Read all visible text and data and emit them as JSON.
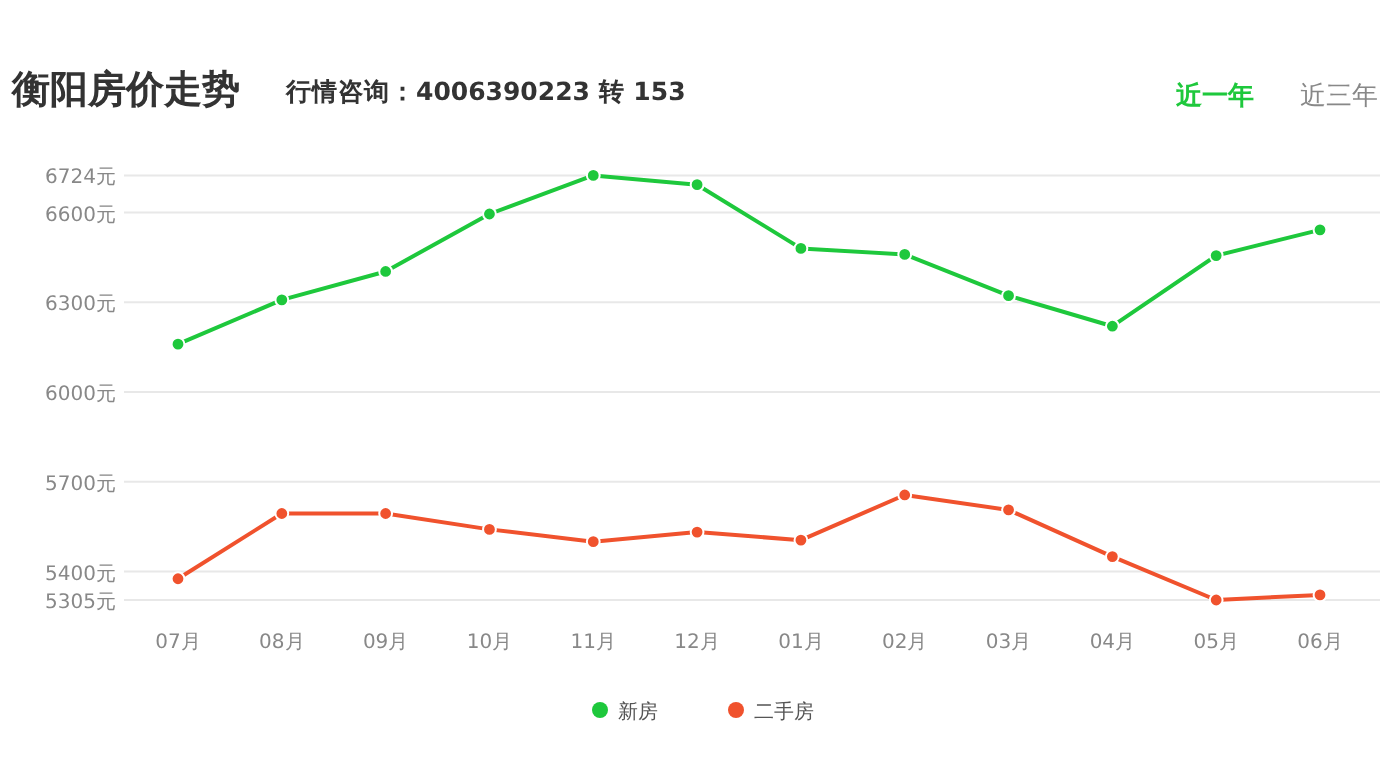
{
  "chart_data": {
    "type": "line",
    "title": "衡阳房价走势",
    "subtitle": "行情咨询：4006390223 转 153",
    "annotations": [
      "近一年",
      "近三年"
    ],
    "categories": [
      "07月",
      "08月",
      "09月",
      "10月",
      "11月",
      "12月",
      "01月",
      "02月",
      "03月",
      "04月",
      "05月",
      "06月"
    ],
    "series": [
      {
        "name": "新房",
        "color": "#1ec83c",
        "values": [
          6160,
          6308,
          6403,
          6595,
          6724,
          6693,
          6480,
          6460,
          6322,
          6220,
          6456,
          6542
        ]
      },
      {
        "name": "二手房",
        "color": "#f0522d",
        "values": [
          5376,
          5594,
          5594,
          5541,
          5500,
          5532,
          5505,
          5656,
          5606,
          5450,
          5305,
          5322
        ]
      }
    ],
    "ylim": [
      5305,
      6724
    ],
    "yticks": [
      {
        "value": 5305,
        "label": "5305元"
      },
      {
        "value": 5400,
        "label": "5400元"
      },
      {
        "value": 5700,
        "label": "5700元"
      },
      {
        "value": 6000,
        "label": "6000元"
      },
      {
        "value": 6300,
        "label": "6300元"
      },
      {
        "value": 6600,
        "label": "6600元"
      },
      {
        "value": 6724,
        "label": "6724元"
      }
    ],
    "grid": "y",
    "legend": "bottom",
    "marker": "circle",
    "line_style": "solid"
  }
}
